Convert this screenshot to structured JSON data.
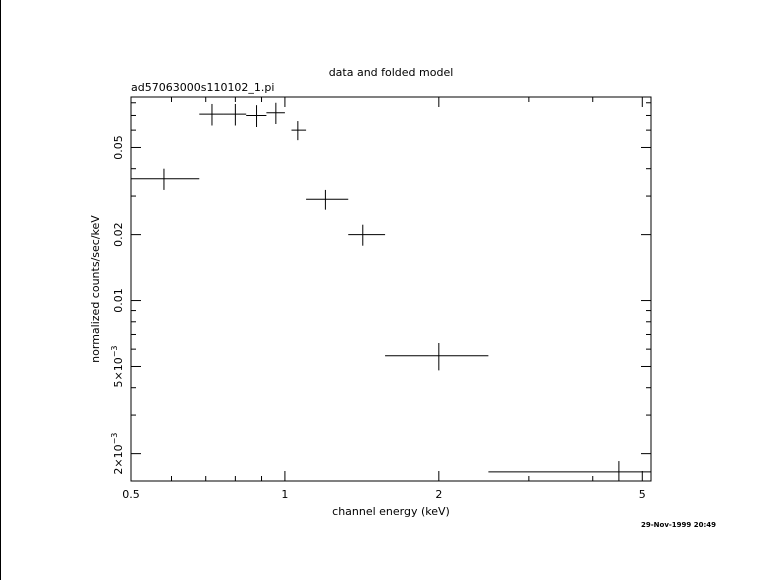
{
  "chart_data": {
    "type": "scatter",
    "title": "data and folded model",
    "subtitle": "ad57063000s110102_1.pi",
    "xlabel": "channel energy (keV)",
    "ylabel": "normalized counts/sec/keV",
    "x_scale": "log",
    "y_scale": "log",
    "xlim": [
      0.5,
      5.2
    ],
    "ylim": [
      0.0015,
      0.085
    ],
    "x_ticks": [
      {
        "value": 0.5,
        "label": "0.5"
      },
      {
        "value": 1,
        "label": "1"
      },
      {
        "value": 2,
        "label": "2"
      },
      {
        "value": 5,
        "label": "5"
      }
    ],
    "y_ticks": [
      {
        "value": 0.002,
        "label": "2×10",
        "exp": "−3"
      },
      {
        "value": 0.005,
        "label": "5×10",
        "exp": "−3"
      },
      {
        "value": 0.01,
        "label": "0.01"
      },
      {
        "value": 0.02,
        "label": "0.02"
      },
      {
        "value": 0.05,
        "label": "0.05"
      }
    ],
    "grid": false,
    "series": [
      {
        "points": [
          {
            "x": 0.58,
            "xlo": 0.5,
            "xhi": 0.68,
            "y": 0.036,
            "ylo": 0.032,
            "yhi": 0.04
          },
          {
            "x": 0.72,
            "xlo": 0.68,
            "xhi": 0.76,
            "y": 0.071,
            "ylo": 0.063,
            "yhi": 0.079
          },
          {
            "x": 0.8,
            "xlo": 0.76,
            "xhi": 0.84,
            "y": 0.071,
            "ylo": 0.063,
            "yhi": 0.079
          },
          {
            "x": 0.88,
            "xlo": 0.84,
            "xhi": 0.92,
            "y": 0.07,
            "ylo": 0.062,
            "yhi": 0.078
          },
          {
            "x": 0.96,
            "xlo": 0.92,
            "xhi": 1.0,
            "y": 0.072,
            "ylo": 0.064,
            "yhi": 0.08
          },
          {
            "x": 1.06,
            "xlo": 1.03,
            "xhi": 1.1,
            "y": 0.06,
            "ylo": 0.054,
            "yhi": 0.066
          },
          {
            "x": 1.2,
            "xlo": 1.1,
            "xhi": 1.33,
            "y": 0.029,
            "ylo": 0.026,
            "yhi": 0.032
          },
          {
            "x": 1.42,
            "xlo": 1.33,
            "xhi": 1.57,
            "y": 0.02,
            "ylo": 0.0178,
            "yhi": 0.0222
          },
          {
            "x": 2.0,
            "xlo": 1.57,
            "xhi": 2.5,
            "y": 0.0056,
            "ylo": 0.0048,
            "yhi": 0.0064
          },
          {
            "x": 4.5,
            "xlo": 2.5,
            "xhi": 5.2,
            "y": 0.00165,
            "ylo": 0.0015,
            "yhi": 0.00185
          }
        ]
      }
    ]
  },
  "footer": {
    "timestamp": "29-Nov-1999 20:49"
  }
}
